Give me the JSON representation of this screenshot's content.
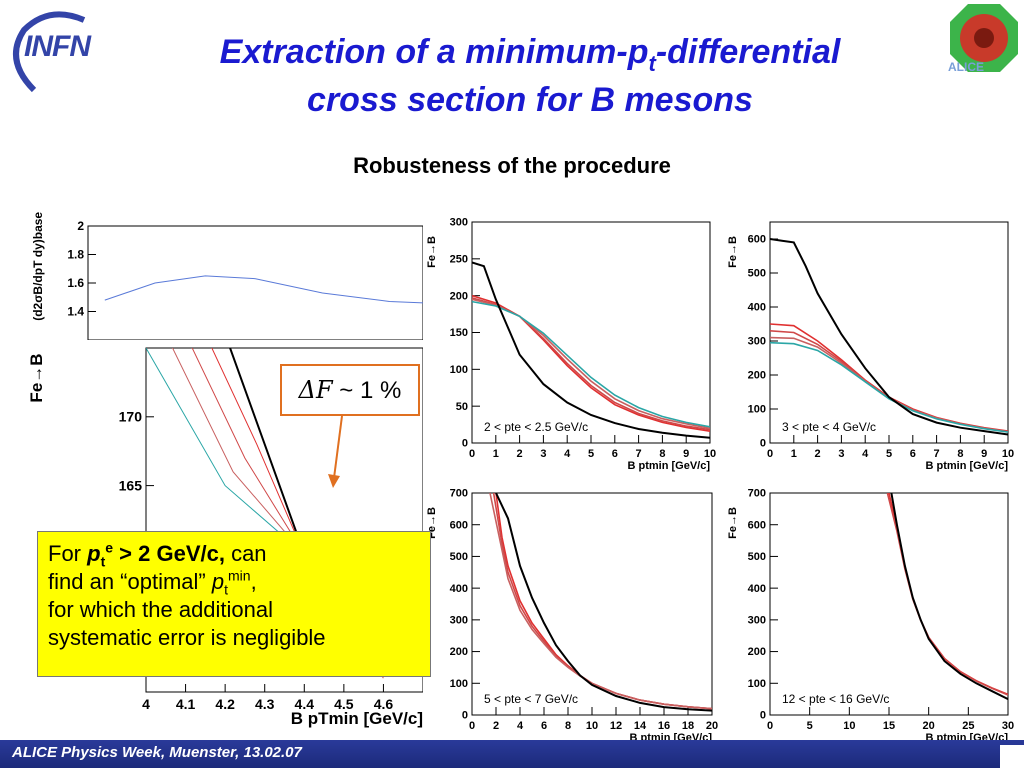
{
  "header": {
    "title_line1_pre": "Extraction of a minimum-p",
    "title_line1_sub": "t",
    "title_line1_post": "-differential",
    "title_line2": "cross section for B mesons",
    "subtitle": "Robusteness of the procedure",
    "logo_left": "INFN",
    "logo_right": "ALICE"
  },
  "note": {
    "line1_pre": "For ",
    "line1_p": "p",
    "line1_sub": "t",
    "line1_sup": "e",
    "line1_bold": " > 2 GeV/c,",
    "line1_post": " can",
    "line2_pre": "find an “optimal” ",
    "line2_p": "p",
    "line2_sub": "t",
    "line2_sup": "min",
    "line2_post": ",",
    "line3": "for which the additional",
    "line4": "systematic error is negligible"
  },
  "delta_box": {
    "symbol": "ΔF",
    "text": " ~ 1 %"
  },
  "footer": {
    "text": "ALICE Physics Week, Muenster, 13.02.07"
  },
  "colors": {
    "title": "#1a1ad0",
    "note_bg": "#ffff00",
    "arrow": "#e07020",
    "footer_bg": "#1c2a7a",
    "baseline": "#000000",
    "variations": [
      "#e03030",
      "#d04848",
      "#c86060",
      "#2aa6a6",
      "#48b8c8",
      "#66c8d8",
      "#7a6ad0"
    ]
  },
  "chart_data": [
    {
      "type": "line",
      "ylabel": "F_{e→B}",
      "xlabel": "B p_t^{min} [GeV/c]",
      "xlim": [
        0,
        10
      ],
      "ylim": [
        0,
        300
      ],
      "xticks": [
        0,
        1,
        2,
        3,
        4,
        5,
        6,
        7,
        8,
        9,
        10
      ],
      "yticks": [
        0,
        50,
        100,
        150,
        200,
        250,
        300
      ],
      "annotation": "2 < p_t^e < 2.5 GeV/c",
      "baseline": [
        [
          0,
          245
        ],
        [
          0.5,
          240
        ],
        [
          1,
          195
        ],
        [
          2,
          120
        ],
        [
          3,
          80
        ],
        [
          4,
          55
        ],
        [
          5,
          38
        ],
        [
          6,
          27
        ],
        [
          7,
          19
        ],
        [
          8,
          14
        ],
        [
          9,
          10
        ],
        [
          10,
          7
        ]
      ],
      "variations": [
        [
          [
            0,
            200
          ],
          [
            1,
            190
          ],
          [
            2,
            172
          ],
          [
            3,
            140
          ],
          [
            4,
            105
          ],
          [
            5,
            75
          ],
          [
            6,
            52
          ],
          [
            7,
            38
          ],
          [
            8,
            28
          ],
          [
            9,
            21
          ],
          [
            10,
            16
          ]
        ],
        [
          [
            0,
            197
          ],
          [
            1,
            188
          ],
          [
            2,
            172
          ],
          [
            3,
            142
          ],
          [
            4,
            108
          ],
          [
            5,
            78
          ],
          [
            6,
            55
          ],
          [
            7,
            40
          ],
          [
            8,
            30
          ],
          [
            9,
            23
          ],
          [
            10,
            18
          ]
        ],
        [
          [
            0,
            195
          ],
          [
            1,
            187
          ],
          [
            2,
            172
          ],
          [
            3,
            146
          ],
          [
            4,
            114
          ],
          [
            5,
            84
          ],
          [
            6,
            60
          ],
          [
            7,
            44
          ],
          [
            8,
            33
          ],
          [
            9,
            26
          ],
          [
            10,
            20
          ]
        ],
        [
          [
            0,
            192
          ],
          [
            1,
            186
          ],
          [
            2,
            172
          ],
          [
            3,
            149
          ],
          [
            4,
            119
          ],
          [
            5,
            89
          ],
          [
            6,
            65
          ],
          [
            7,
            48
          ],
          [
            8,
            36
          ],
          [
            9,
            28
          ],
          [
            10,
            22
          ]
        ]
      ]
    },
    {
      "type": "line",
      "ylabel": "F_{e→B}",
      "xlabel": "B p_t^{min} [GeV/c]",
      "xlim": [
        0,
        10
      ],
      "ylim": [
        0,
        650
      ],
      "xticks": [
        0,
        1,
        2,
        3,
        4,
        5,
        6,
        7,
        8,
        9,
        10
      ],
      "yticks": [
        0,
        100,
        200,
        300,
        400,
        500,
        600
      ],
      "annotation": "3 < p_t^e < 4 GeV/c",
      "baseline": [
        [
          0,
          600
        ],
        [
          0.5,
          595
        ],
        [
          1,
          590
        ],
        [
          1.5,
          520
        ],
        [
          2,
          440
        ],
        [
          3,
          320
        ],
        [
          4,
          220
        ],
        [
          5,
          135
        ],
        [
          6,
          85
        ],
        [
          7,
          60
        ],
        [
          8,
          45
        ],
        [
          9,
          35
        ],
        [
          10,
          25
        ]
      ],
      "variations": [
        [
          [
            0,
            350
          ],
          [
            1,
            345
          ],
          [
            2,
            300
          ],
          [
            3,
            245
          ],
          [
            4,
            185
          ],
          [
            5,
            135
          ],
          [
            6,
            100
          ],
          [
            7,
            75
          ],
          [
            8,
            58
          ],
          [
            9,
            45
          ],
          [
            10,
            35
          ]
        ],
        [
          [
            0,
            330
          ],
          [
            1,
            325
          ],
          [
            2,
            290
          ],
          [
            3,
            240
          ],
          [
            4,
            183
          ],
          [
            5,
            133
          ],
          [
            6,
            98
          ],
          [
            7,
            74
          ],
          [
            8,
            57
          ],
          [
            9,
            44
          ],
          [
            10,
            34
          ]
        ],
        [
          [
            0,
            310
          ],
          [
            1,
            308
          ],
          [
            2,
            282
          ],
          [
            3,
            235
          ],
          [
            4,
            182
          ],
          [
            5,
            132
          ],
          [
            6,
            97
          ],
          [
            7,
            73
          ],
          [
            8,
            56
          ],
          [
            9,
            43
          ],
          [
            10,
            33
          ]
        ],
        [
          [
            0,
            295
          ],
          [
            1,
            292
          ],
          [
            2,
            272
          ],
          [
            3,
            230
          ],
          [
            4,
            180
          ],
          [
            5,
            130
          ],
          [
            6,
            95
          ],
          [
            7,
            71
          ],
          [
            8,
            55
          ],
          [
            9,
            42
          ],
          [
            10,
            32
          ]
        ]
      ]
    },
    {
      "type": "line",
      "ylabel": "F_{e→B}",
      "xlabel": "B p_t^{min} [GeV/c]",
      "xlim": [
        0,
        20
      ],
      "ylim": [
        0,
        700
      ],
      "xticks": [
        0,
        2,
        4,
        6,
        8,
        10,
        12,
        14,
        16,
        18,
        20
      ],
      "yticks": [
        0,
        100,
        200,
        300,
        400,
        500,
        600,
        700
      ],
      "annotation": "5 < p_t^e < 7 GeV/c",
      "baseline": [
        [
          2,
          700
        ],
        [
          3,
          620
        ],
        [
          4,
          470
        ],
        [
          5,
          370
        ],
        [
          6,
          290
        ],
        [
          7,
          220
        ],
        [
          8,
          170
        ],
        [
          9,
          125
        ],
        [
          10,
          95
        ],
        [
          12,
          60
        ],
        [
          14,
          38
        ],
        [
          16,
          25
        ],
        [
          18,
          18
        ],
        [
          20,
          14
        ]
      ],
      "variations": [
        [
          [
            2,
            700
          ],
          [
            2.5,
            560
          ],
          [
            3,
            470
          ],
          [
            4,
            360
          ],
          [
            5,
            290
          ],
          [
            6,
            240
          ],
          [
            7,
            190
          ],
          [
            8,
            155
          ],
          [
            9,
            125
          ],
          [
            10,
            100
          ],
          [
            12,
            68
          ],
          [
            14,
            47
          ],
          [
            16,
            34
          ],
          [
            18,
            26
          ],
          [
            20,
            20
          ]
        ],
        [
          [
            1.8,
            700
          ],
          [
            2.5,
            540
          ],
          [
            3,
            450
          ],
          [
            4,
            345
          ],
          [
            5,
            280
          ],
          [
            6,
            232
          ],
          [
            7,
            185
          ],
          [
            8,
            152
          ],
          [
            9,
            124
          ],
          [
            10,
            100
          ],
          [
            12,
            68
          ],
          [
            14,
            47
          ],
          [
            16,
            34
          ],
          [
            18,
            26
          ],
          [
            20,
            20
          ]
        ],
        [
          [
            1.5,
            700
          ],
          [
            2.5,
            520
          ],
          [
            3,
            430
          ],
          [
            4,
            330
          ],
          [
            5,
            270
          ],
          [
            6,
            225
          ],
          [
            7,
            182
          ],
          [
            8,
            150
          ],
          [
            9,
            123
          ],
          [
            10,
            100
          ],
          [
            12,
            68
          ],
          [
            14,
            47
          ],
          [
            16,
            34
          ],
          [
            18,
            26
          ],
          [
            20,
            20
          ]
        ]
      ]
    },
    {
      "type": "line",
      "ylabel": "F_{e→B}",
      "xlabel": "B p_t^{min} [GeV/c]",
      "xlim": [
        0,
        30
      ],
      "ylim": [
        0,
        700
      ],
      "xticks": [
        0,
        5,
        10,
        15,
        20,
        25,
        30
      ],
      "yticks": [
        0,
        100,
        200,
        300,
        400,
        500,
        600,
        700
      ],
      "annotation": "12 < p_t^e < 16 GeV/c",
      "baseline": [
        [
          15.3,
          700
        ],
        [
          16,
          600
        ],
        [
          17,
          470
        ],
        [
          18,
          370
        ],
        [
          19,
          300
        ],
        [
          20,
          240
        ],
        [
          22,
          170
        ],
        [
          24,
          130
        ],
        [
          26,
          100
        ],
        [
          28,
          75
        ],
        [
          30,
          50
        ]
      ],
      "variations": [
        [
          [
            15,
            700
          ],
          [
            16,
            590
          ],
          [
            17,
            465
          ],
          [
            18,
            368
          ],
          [
            19,
            300
          ],
          [
            20,
            245
          ],
          [
            22,
            178
          ],
          [
            24,
            137
          ],
          [
            26,
            108
          ],
          [
            28,
            85
          ],
          [
            30,
            65
          ]
        ],
        [
          [
            14.8,
            700
          ],
          [
            16,
            580
          ],
          [
            17,
            460
          ],
          [
            18,
            365
          ],
          [
            19,
            298
          ],
          [
            20,
            244
          ],
          [
            22,
            177
          ],
          [
            24,
            136
          ],
          [
            26,
            107
          ],
          [
            28,
            84
          ],
          [
            30,
            63
          ]
        ]
      ]
    },
    {
      "type": "line",
      "ylabel": "(d^2σ^B/dp_T dy)_{baseline}",
      "xlim": [
        0,
        1
      ],
      "ylim": [
        1.2,
        2
      ],
      "yticks": [
        1.4,
        1.6,
        1.8,
        2
      ],
      "series": [
        {
          "values": [
            [
              0.05,
              1.48
            ],
            [
              0.2,
              1.6
            ],
            [
              0.35,
              1.65
            ],
            [
              0.5,
              1.63
            ],
            [
              0.7,
              1.53
            ],
            [
              0.9,
              1.47
            ],
            [
              1,
              1.46
            ]
          ]
        }
      ]
    },
    {
      "type": "line",
      "ylabel": "F_{e→B}",
      "xlabel": "B p_T^{min} [GeV/c]",
      "xlim": [
        4,
        4.7
      ],
      "ylim": [
        150,
        175
      ],
      "xticks": [
        4,
        4.1,
        4.2,
        4.3,
        4.4,
        4.5,
        4.6
      ],
      "yticks": [
        160,
        165,
        170
      ],
      "baseline": [
        [
          4.2,
          176
        ],
        [
          4.3,
          168
        ],
        [
          4.4,
          160
        ],
        [
          4.5,
          152
        ]
      ],
      "variations": [
        [
          [
            4.15,
            176
          ],
          [
            4.28,
            168
          ],
          [
            4.4,
            160
          ],
          [
            4.5,
            153
          ]
        ],
        [
          [
            4.1,
            176
          ],
          [
            4.25,
            167
          ],
          [
            4.4,
            160
          ],
          [
            4.55,
            152
          ]
        ],
        [
          [
            4.05,
            176
          ],
          [
            4.22,
            166
          ],
          [
            4.4,
            160
          ],
          [
            4.6,
            151
          ]
        ],
        [
          [
            4.0,
            175
          ],
          [
            4.2,
            165
          ],
          [
            4.4,
            160
          ],
          [
            4.6,
            154
          ]
        ]
      ]
    }
  ]
}
